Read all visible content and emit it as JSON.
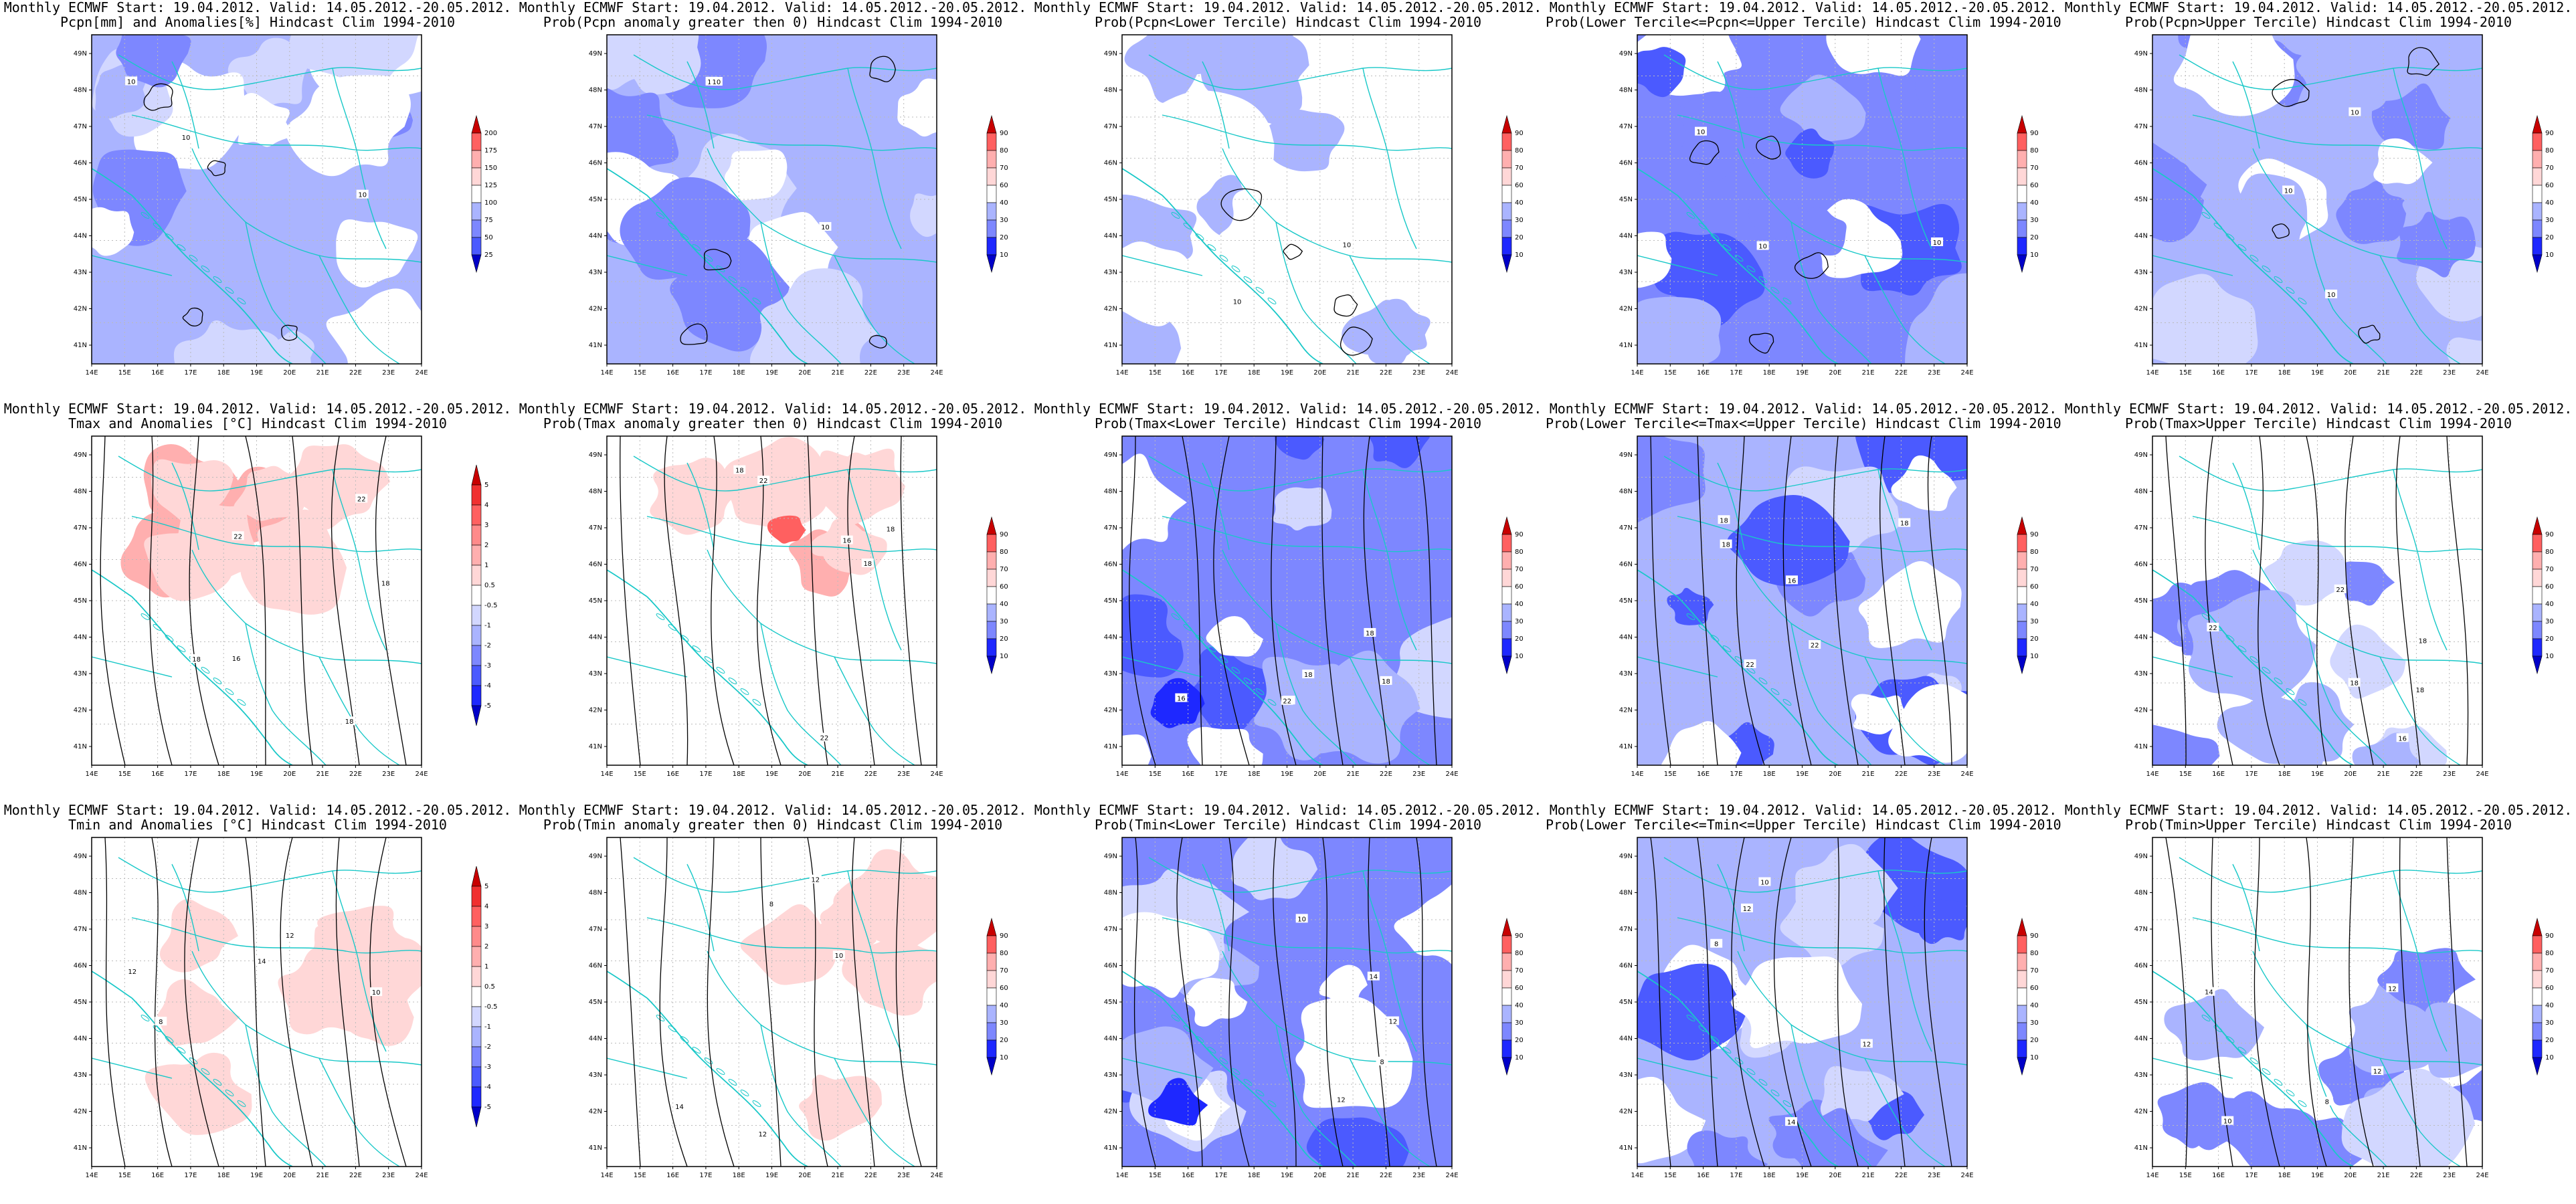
{
  "colors": {
    "blue_scale": [
      "#0000c8",
      "#1e28ff",
      "#4b5aff",
      "#7d87ff",
      "#aab4ff",
      "#d2d7ff"
    ],
    "red_scale": [
      "#ffd7d7",
      "#ffafaf",
      "#ff8a8a",
      "#ff6060",
      "#f03030",
      "#c80000"
    ],
    "coast": "#19c8c8",
    "contour": "#000000"
  },
  "axes": {
    "lon_ticks": [
      "14E",
      "15E",
      "16E",
      "17E",
      "18E",
      "19E",
      "20E",
      "21E",
      "22E",
      "23E",
      "24E"
    ],
    "lat_ticks": [
      "41N",
      "42N",
      "43N",
      "44N",
      "45N",
      "46N",
      "47N",
      "48N",
      "49N"
    ]
  },
  "panels": [
    {
      "row": 0,
      "col": 0,
      "title1": "Monthly ECMWF Start: 19.04.2012. Valid: 14.05.2012.-20.05.2012.",
      "title2": "Pcpn[mm] and Anomalies[%] Hindcast Clim 1994-2010",
      "scale": "anom_pcpn",
      "levels": [
        "25",
        "50",
        "75",
        "100",
        "125",
        "150",
        "175",
        "200"
      ],
      "contour_labels": [
        "10",
        "10",
        "10"
      ]
    },
    {
      "row": 0,
      "col": 1,
      "title1": "Monthly ECMWF Start: 19.04.2012. Valid: 14.05.2012.-20.05.2012.",
      "title2": "Prob(Pcpn anomaly greater then 0) Hindcast Clim 1994-2010",
      "scale": "prob",
      "levels": [
        "10",
        "20",
        "30",
        "40",
        "60",
        "70",
        "80",
        "90"
      ],
      "contour_labels": [
        "10",
        "10",
        "10"
      ]
    },
    {
      "row": 0,
      "col": 2,
      "title1": "Monthly ECMWF Start: 19.04.2012. Valid: 14.05.2012.-20.05.2012.",
      "title2": "Prob(Pcpn<Lower Tercile) Hindcast Clim 1994-2010",
      "scale": "prob",
      "levels": [
        "10",
        "20",
        "30",
        "40",
        "60",
        "70",
        "80",
        "90"
      ],
      "contour_labels": [
        "10",
        "10"
      ]
    },
    {
      "row": 0,
      "col": 3,
      "title1": "Monthly ECMWF Start: 19.04.2012. Valid: 14.05.2012.-20.05.2012.",
      "title2": "Prob(Lower Tercile<=Pcpn<=Upper Tercile) Hindcast Clim 1994-2010",
      "scale": "prob",
      "levels": [
        "10",
        "20",
        "30",
        "40",
        "60",
        "70",
        "80",
        "90"
      ],
      "contour_labels": [
        "10",
        "10",
        "10"
      ]
    },
    {
      "row": 0,
      "col": 4,
      "title1": "Monthly ECMWF Start: 19.04.2012. Valid: 14.05.2012.-20.05.2012.",
      "title2": "Prob(Pcpn>Upper Tercile) Hindcast Clim 1994-2010",
      "scale": "prob",
      "levels": [
        "10",
        "20",
        "30",
        "40",
        "60",
        "70",
        "80",
        "90"
      ],
      "contour_labels": [
        "10",
        "10",
        "10"
      ]
    },
    {
      "row": 1,
      "col": 0,
      "title1": "Monthly ECMWF Start: 19.04.2012. Valid: 14.05.2012.-20.05.2012.",
      "title2": "Tmax and Anomalies [°C] Hindcast Clim 1994-2010",
      "scale": "anom_t",
      "levels": [
        "-5",
        "-4",
        "-3",
        "-2",
        "-1",
        "-0.5",
        "0.5",
        "1",
        "2",
        "3",
        "4",
        "5"
      ],
      "contour_labels": [
        "22",
        "18",
        "18",
        "22",
        "16",
        "18"
      ]
    },
    {
      "row": 1,
      "col": 1,
      "title1": "Monthly ECMWF Start: 19.04.2012. Valid: 14.05.2012.-20.05.2012.",
      "title2": "Prob(Tmax anomaly greater then 0) Hindcast Clim 1994-2010",
      "scale": "prob",
      "levels": [
        "10",
        "20",
        "30",
        "40",
        "60",
        "70",
        "80",
        "90"
      ],
      "contour_labels": [
        "22",
        "18",
        "18",
        "22",
        "16",
        "18"
      ]
    },
    {
      "row": 1,
      "col": 2,
      "title1": "Monthly ECMWF Start: 19.04.2012. Valid: 14.05.2012.-20.05.2012.",
      "title2": "Prob(Tmax<Lower Tercile) Hindcast Clim 1994-2010",
      "scale": "prob",
      "levels": [
        "10",
        "20",
        "30",
        "40",
        "60",
        "70",
        "80",
        "90"
      ],
      "contour_labels": [
        "22",
        "18",
        "18",
        "22",
        "16",
        "18"
      ]
    },
    {
      "row": 1,
      "col": 3,
      "title1": "Monthly ECMWF Start: 19.04.2012. Valid: 14.05.2012.-20.05.2012.",
      "title2": "Prob(Lower Tercile<=Tmax<=Upper Tercile) Hindcast Clim 1994-2010",
      "scale": "prob",
      "levels": [
        "10",
        "20",
        "30",
        "40",
        "60",
        "70",
        "80",
        "90"
      ],
      "contour_labels": [
        "22",
        "18",
        "18",
        "22",
        "16",
        "18"
      ]
    },
    {
      "row": 1,
      "col": 4,
      "title1": "Monthly ECMWF Start: 19.04.2012. Valid: 14.05.2012.-20.05.2012.",
      "title2": "Prob(Tmax>Upper Tercile) Hindcast Clim 1994-2010",
      "scale": "prob",
      "levels": [
        "10",
        "20",
        "30",
        "40",
        "60",
        "70",
        "80",
        "90"
      ],
      "contour_labels": [
        "22",
        "18",
        "18",
        "22",
        "16",
        "18"
      ]
    },
    {
      "row": 2,
      "col": 0,
      "title1": "Monthly ECMWF Start: 19.04.2012. Valid: 14.05.2012.-20.05.2012.",
      "title2": "Tmin and Anomalies [°C] Hindcast Clim 1994-2010",
      "scale": "anom_t",
      "levels": [
        "-5",
        "-4",
        "-3",
        "-2",
        "-1",
        "-0.5",
        "0.5",
        "1",
        "2",
        "3",
        "4",
        "5"
      ],
      "contour_labels": [
        "12",
        "12",
        "14",
        "10",
        "8"
      ]
    },
    {
      "row": 2,
      "col": 1,
      "title1": "Monthly ECMWF Start: 19.04.2012. Valid: 14.05.2012.-20.05.2012.",
      "title2": "Prob(Tmin anomaly greater then 0) Hindcast Clim 1994-2010",
      "scale": "prob",
      "levels": [
        "10",
        "20",
        "30",
        "40",
        "60",
        "70",
        "80",
        "90"
      ],
      "contour_labels": [
        "12",
        "12",
        "14",
        "10",
        "8"
      ]
    },
    {
      "row": 2,
      "col": 2,
      "title1": "Monthly ECMWF Start: 19.04.2012. Valid: 14.05.2012.-20.05.2012.",
      "title2": "Prob(Tmin<Lower Tercile) Hindcast Clim 1994-2010",
      "scale": "prob",
      "levels": [
        "10",
        "20",
        "30",
        "40",
        "60",
        "70",
        "80",
        "90"
      ],
      "contour_labels": [
        "12",
        "12",
        "14",
        "10",
        "8"
      ]
    },
    {
      "row": 2,
      "col": 3,
      "title1": "Monthly ECMWF Start: 19.04.2012. Valid: 14.05.2012.-20.05.2012.",
      "title2": "Prob(Lower Tercile<=Tmin<=Upper Tercile) Hindcast Clim 1994-2010",
      "scale": "prob",
      "levels": [
        "10",
        "20",
        "30",
        "40",
        "60",
        "70",
        "80",
        "90"
      ],
      "contour_labels": [
        "12",
        "12",
        "14",
        "10",
        "8"
      ]
    },
    {
      "row": 2,
      "col": 4,
      "title1": "Monthly ECMWF Start: 19.04.2012. Valid: 14.05.2012.-20.05.2012.",
      "title2": "Prob(Tmin>Upper Tercile) Hindcast Clim 1994-2010",
      "scale": "prob",
      "levels": [
        "10",
        "20",
        "30",
        "40",
        "60",
        "70",
        "80",
        "90"
      ],
      "contour_labels": [
        "12",
        "12",
        "14",
        "10",
        "8"
      ]
    }
  ]
}
